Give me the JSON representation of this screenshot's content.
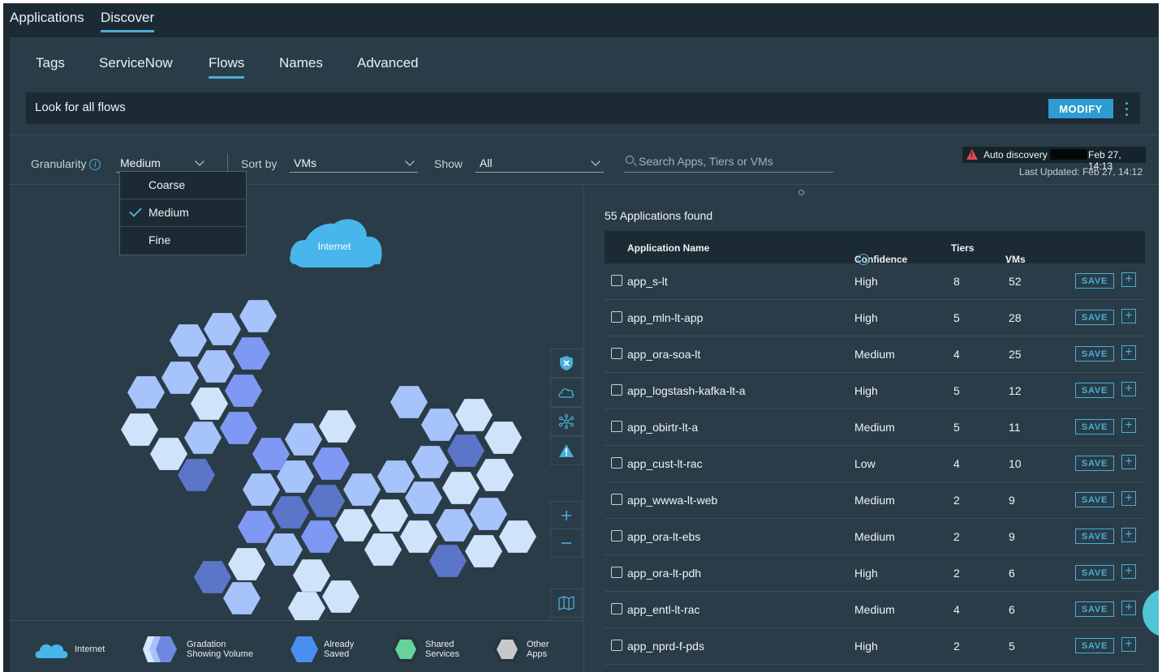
{
  "top_tabs": [
    "Applications",
    "Discover"
  ],
  "sub_tabs": [
    "Tags",
    "ServiceNow",
    "Flows",
    "Names",
    "Advanced"
  ],
  "banner": {
    "text": "Look for all flows",
    "modify_label": "MODIFY"
  },
  "filters": {
    "granularity_label": "Granularity",
    "granularity_value": "Medium",
    "sort_label": "Sort by",
    "sort_value": "VMs",
    "show_label": "Show",
    "show_value": "All",
    "search_placeholder": "Search Apps, Tiers or VMs"
  },
  "granularity_options": [
    {
      "label": "Coarse",
      "selected": false
    },
    {
      "label": "Medium",
      "selected": true
    },
    {
      "label": "Fine",
      "selected": false
    }
  ],
  "auto_discovery": {
    "label": "Auto discovery",
    "date": "Feb 27, 14:13",
    "last_updated": "Last Updated: Feb 27, 14:12"
  },
  "map": {
    "internet_label": "Internet"
  },
  "legend": {
    "internet": "Internet",
    "gradation_1": "Gradation",
    "gradation_2": "Showing Volume",
    "saved_1": "Already",
    "saved_2": "Saved",
    "shared_1": "Shared",
    "shared_2": "Services",
    "other_1": "Other",
    "other_2": "Apps"
  },
  "results": {
    "found_text": "55 Applications found",
    "columns": {
      "name": "Application Name",
      "confidence": "Confidence",
      "tiers": "Tiers",
      "vms": "VMs"
    },
    "save_label": "SAVE",
    "rows": [
      {
        "name": "app_s-lt",
        "confidence": "High",
        "tiers": "8",
        "vms": "52"
      },
      {
        "name": "app_mln-lt-app",
        "confidence": "High",
        "tiers": "5",
        "vms": "28"
      },
      {
        "name": "app_ora-soa-lt",
        "confidence": "Medium",
        "tiers": "4",
        "vms": "25"
      },
      {
        "name": "app_logstash-kafka-lt-a",
        "confidence": "High",
        "tiers": "5",
        "vms": "12"
      },
      {
        "name": "app_obirtr-lt-a",
        "confidence": "Medium",
        "tiers": "5",
        "vms": "11"
      },
      {
        "name": "app_cust-lt-rac",
        "confidence": "Low",
        "tiers": "4",
        "vms": "10"
      },
      {
        "name": "app_wwwa-lt-web",
        "confidence": "Medium",
        "tiers": "2",
        "vms": "9"
      },
      {
        "name": "app_ora-lt-ebs",
        "confidence": "Medium",
        "tiers": "2",
        "vms": "9"
      },
      {
        "name": "app_ora-lt-pdh",
        "confidence": "High",
        "tiers": "2",
        "vms": "6"
      },
      {
        "name": "app_entl-lt-rac",
        "confidence": "Medium",
        "tiers": "4",
        "vms": "6"
      },
      {
        "name": "app_nprd-f-pds",
        "confidence": "High",
        "tiers": "2",
        "vms": "5"
      }
    ]
  },
  "colors": {
    "accent": "#49afd9",
    "hex_light": "#cfe3fb",
    "hex_mid": "#a6c3fb",
    "hex_strong": "#7f98f3",
    "hex_dark": "#5b75c9"
  }
}
